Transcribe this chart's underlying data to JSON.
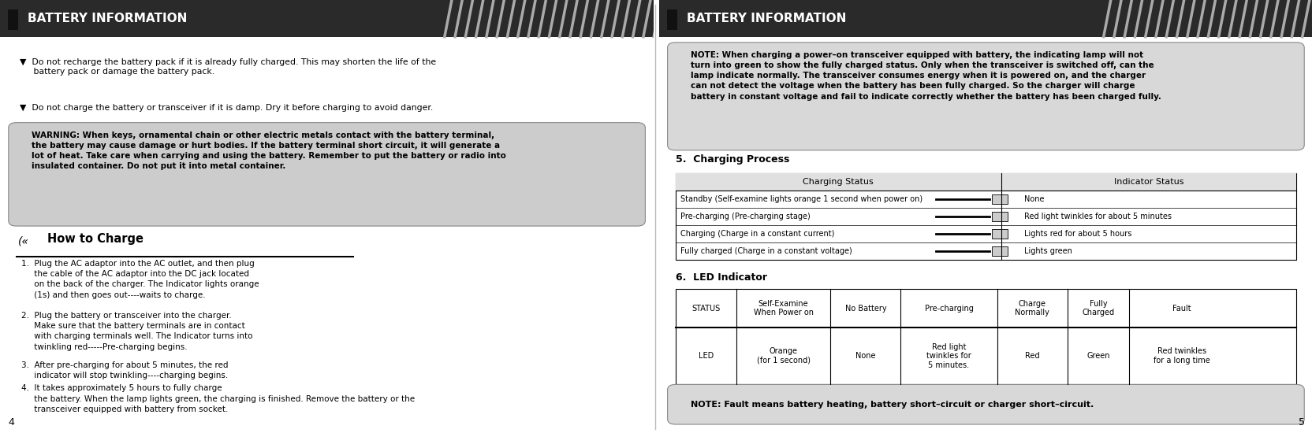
{
  "bg_color": "#ffffff",
  "left_panel": {
    "title": "BATTERY INFORMATION",
    "title_bg": "#2a2a2a",
    "title_color": "#ffffff",
    "stripe_color": "#aaaaaa",
    "bullet1": "▼  Do not recharge the battery pack if it is already fully charged. This may shorten the life of the\n     battery pack or damage the battery pack.",
    "bullet2": "▼  Do not charge the battery or transceiver if it is damp. Dry it before charging to avoid danger.",
    "warning_bg": "#cccccc",
    "warning_text": "WARNING: When keys, ornamental chain or other electric metals contact with the battery terminal,\nthe battery may cause damage or hurt bodies. If the battery terminal short circuit, it will generate a\nlot of heat. Take care when carrying and using the battery. Remember to put the battery or radio into\ninsulated container. Do not put it into metal container.",
    "how_to_charge": "How to Charge",
    "step1": "1.  Plug the AC adaptor into the AC outlet, and then plug\n     the cable of the AC adaptor into the DC jack located\n     on the back of the charger. The Indicator lights orange\n     (1s) and then goes out----waits to charge.",
    "step2": "2.  Plug the battery or transceiver into the charger.\n     Make sure that the battery terminals are in contact\n     with charging terminals well. The Indicator turns into\n     twinkling red-----Pre-charging begins.",
    "step3": "3.  After pre-charging for about 5 minutes, the red\n     indicator will stop twinkling----charging begins.",
    "step4": "4.  It takes approximately 5 hours to fully charge\n     the battery. When the lamp lights green, the charging is finished. Remove the battery or the\n     transceiver equipped with battery from socket.",
    "page_num": "4"
  },
  "right_panel": {
    "title": "BATTERY INFORMATION",
    "title_bg": "#2a2a2a",
    "title_color": "#ffffff",
    "stripe_color": "#aaaaaa",
    "note_bg": "#d8d8d8",
    "note_text": "NOTE: When charging a power–on transceiver equipped with battery, the indicating lamp will not\nturn into green to show the fully charged status. Only when the transceiver is switched off, can the\nlamp indicate normally. The transceiver consumes energy when it is powered on, and the charger\ncan not detect the voltage when the battery has been fully charged. So the charger will charge\nbattery in constant voltage and fail to indicate correctly whether the battery has been charged fully.",
    "section5": "5.  Charging Process",
    "charging_status_header": "Charging Status",
    "indicator_status_header": "Indicator Status",
    "charging_rows": [
      [
        "Standby (Self-examine lights orange 1 second when power on)",
        "None"
      ],
      [
        "Pre-charging (Pre-charging stage)",
        "Red light twinkles for about 5 minutes"
      ],
      [
        "Charging (Charge in a constant current)",
        "Lights red for about 5 hours"
      ],
      [
        "Fully charged (Charge in a constant voltage)",
        "Lights green"
      ]
    ],
    "section6": "6.  LED Indicator",
    "led_headers": [
      "STATUS",
      "Self-Examine\nWhen Power on",
      "No Battery",
      "Pre-charging",
      "Charge\nNormally",
      "Fully\nCharged",
      "Fault"
    ],
    "led_row": [
      "LED",
      "Orange\n(for 1 second)",
      "None",
      "Red light\ntwinkles for\n5 minutes.",
      "Red",
      "Green",
      "Red twinkles\nfor a long time"
    ],
    "fault_note_bg": "#d8d8d8",
    "fault_note_text": "NOTE: Fault means battery heating, battery short–circuit or charger short–circuit.",
    "page_num": "5"
  }
}
